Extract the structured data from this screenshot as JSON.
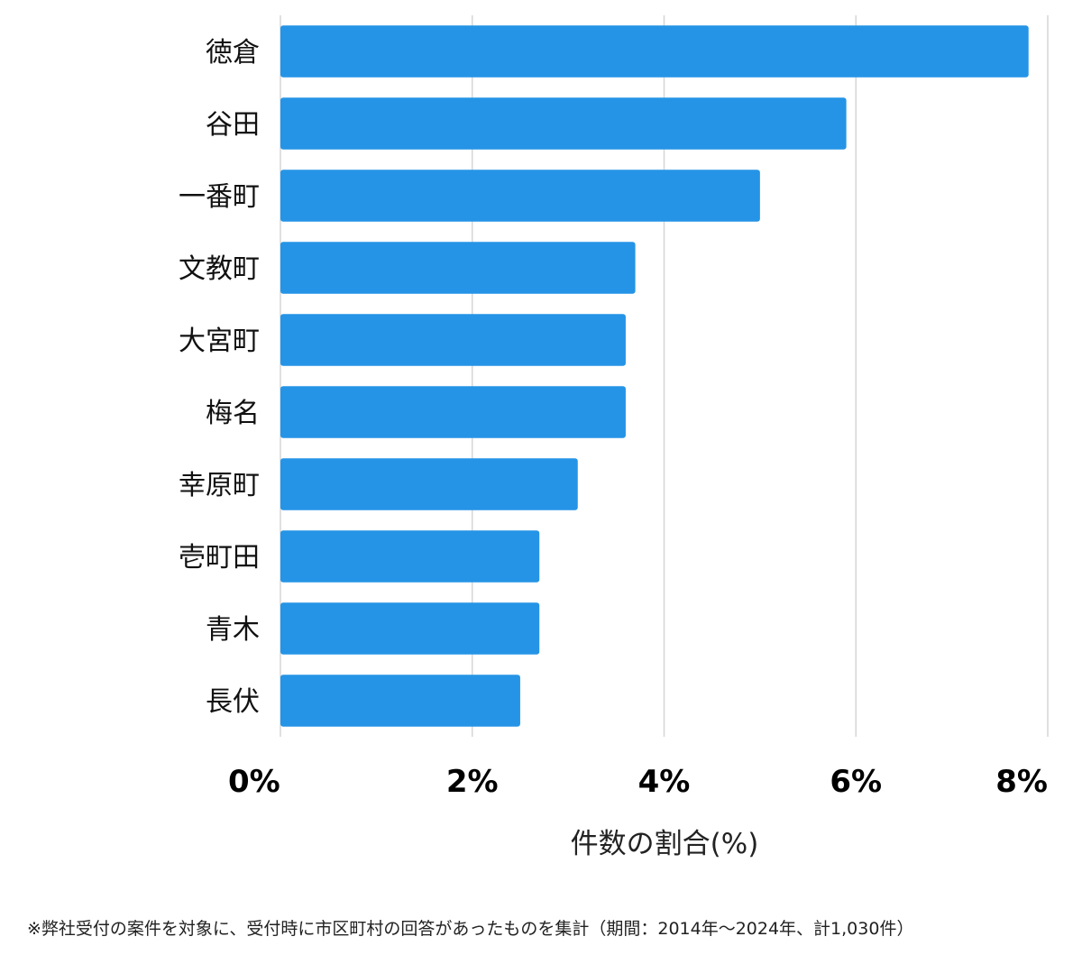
{
  "chart_data": {
    "type": "bar",
    "orientation": "horizontal",
    "categories": [
      "徳倉",
      "谷田",
      "一番町",
      "文教町",
      "大宮町",
      "梅名",
      "幸原町",
      "壱町田",
      "青木",
      "長伏"
    ],
    "values": [
      7.8,
      5.9,
      5.0,
      3.7,
      3.6,
      3.6,
      3.1,
      2.7,
      2.7,
      2.5
    ],
    "xlim": [
      0,
      8
    ],
    "xticks": [
      "0%",
      "2%",
      "4%",
      "6%",
      "8%"
    ],
    "xlabel": "件数の割合(%)",
    "ylabel": "",
    "grid": true,
    "bar_color": "#2594e6"
  },
  "footnote": "※弊社受付の案件を対象に、受付時に市区町村の回答があったものを集計（期間：2014年～2024年、計1,030件）"
}
